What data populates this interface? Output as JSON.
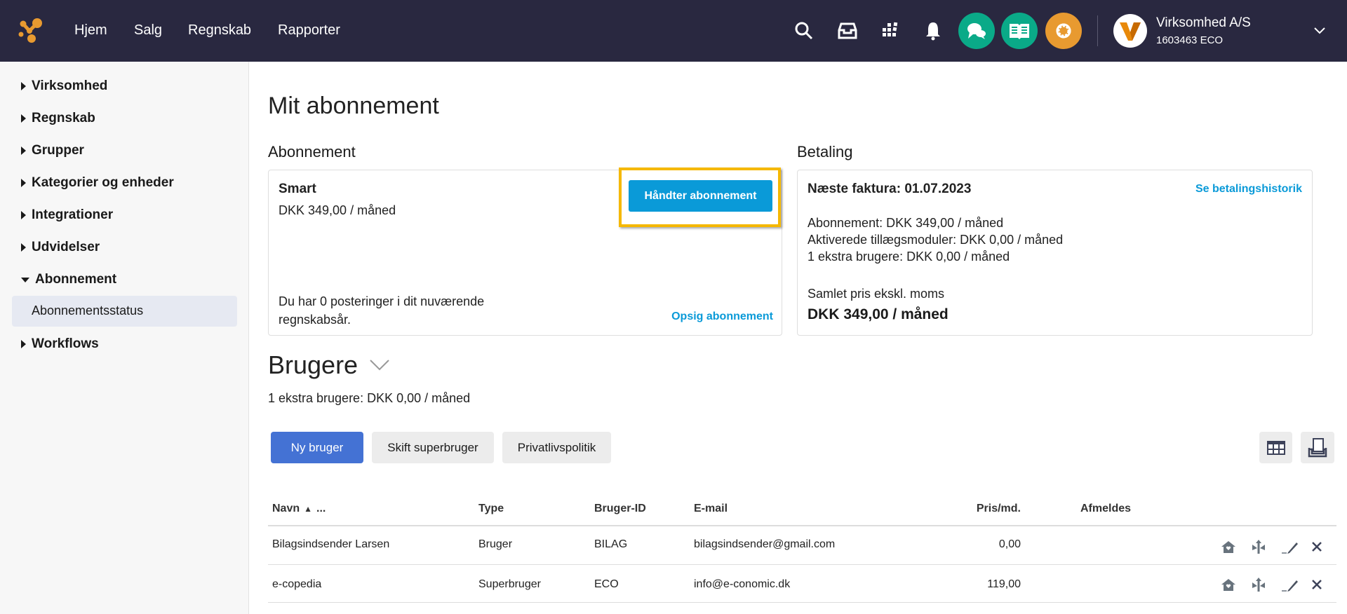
{
  "topbar": {
    "nav": [
      "Hjem",
      "Salg",
      "Regnskab",
      "Rapporter"
    ],
    "icons": [
      "search-icon",
      "inbox-icon",
      "apps-grid-icon",
      "bell-icon",
      "chat-icon",
      "book-icon",
      "gear-icon"
    ],
    "company_name": "Virksomhed A/S",
    "company_id": "1603463 ECO",
    "colors": {
      "bar": "#292840",
      "green": "#0aaa88",
      "orange": "#e89a30"
    }
  },
  "sidebar": {
    "items": [
      {
        "label": "Virksomhed",
        "expanded": false
      },
      {
        "label": "Regnskab",
        "expanded": false
      },
      {
        "label": "Grupper",
        "expanded": false
      },
      {
        "label": "Kategorier og enheder",
        "expanded": false
      },
      {
        "label": "Integrationer",
        "expanded": false
      },
      {
        "label": "Udvidelser",
        "expanded": false
      },
      {
        "label": "Abonnement",
        "expanded": true
      },
      {
        "label": "Abonnementsstatus",
        "selected": true
      },
      {
        "label": "Workflows",
        "expanded": false
      }
    ]
  },
  "page": {
    "title": "Mit abonnement",
    "subscription": {
      "heading": "Abonnement",
      "plan": "Smart",
      "price": "DKK 349,00 / måned",
      "manage_button": "Håndter abonnement",
      "postings_note": "Du har 0 posteringer i dit nuværende regnskabsår.",
      "cancel_link": "Opsig abonnement"
    },
    "payment": {
      "heading": "Betaling",
      "next_invoice": "Næste faktura: 01.07.2023",
      "history_link": "Se betalingshistorik",
      "lines": [
        "Abonnement: DKK 349,00 / måned",
        "Aktiverede tillægsmoduler: DKK 0,00 / måned",
        "1 ekstra brugere: DKK 0,00 / måned"
      ],
      "total_label": "Samlet pris ekskl. moms",
      "total": "DKK 349,00 / måned"
    },
    "users": {
      "heading": "Brugere",
      "extra": "1 ekstra brugere: DKK 0,00 / måned",
      "buttons": {
        "new": "Ny bruger",
        "switch": "Skift superbruger",
        "privacy": "Privatlivspolitik"
      },
      "columns": {
        "name": "Navn",
        "more": "...",
        "type": "Type",
        "id": "Bruger-ID",
        "email": "E-mail",
        "price": "Pris/md.",
        "unsubscribe": "Afmeldes"
      },
      "rows": [
        {
          "name": "Bilagsindsender Larsen",
          "type": "Bruger",
          "id": "BILAG",
          "email": "bilagsindsender@gmail.com",
          "price": "0,00"
        },
        {
          "name": "e-copedia",
          "type": "Superbruger",
          "id": "ECO",
          "email": "info@e-conomic.dk",
          "price": "119,00"
        }
      ]
    }
  }
}
